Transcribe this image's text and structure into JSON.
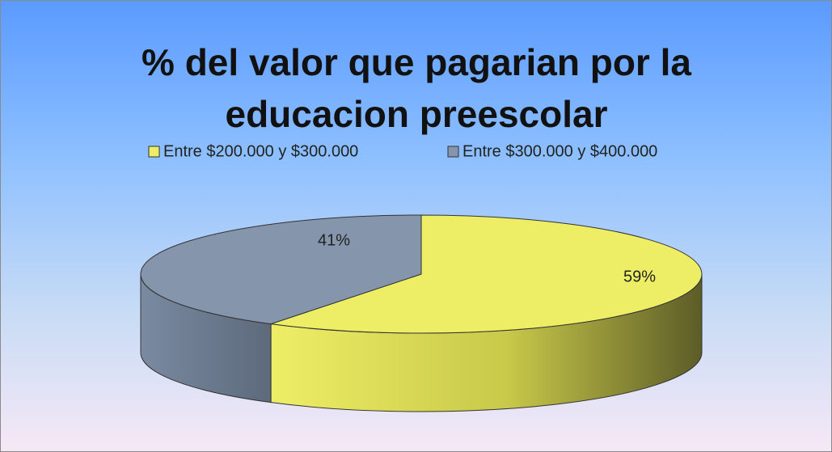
{
  "chart_data": {
    "type": "pie",
    "title": "% del valor que pagarian por la educacion preescolar",
    "categories": [
      "Entre $200.000 y $300.000",
      "Entre $300.000 y $400.000"
    ],
    "values": [
      59,
      41
    ],
    "value_labels": [
      "59%",
      "41%"
    ],
    "colors": [
      "#eeee66",
      "#8495ac"
    ],
    "legend": "top"
  }
}
